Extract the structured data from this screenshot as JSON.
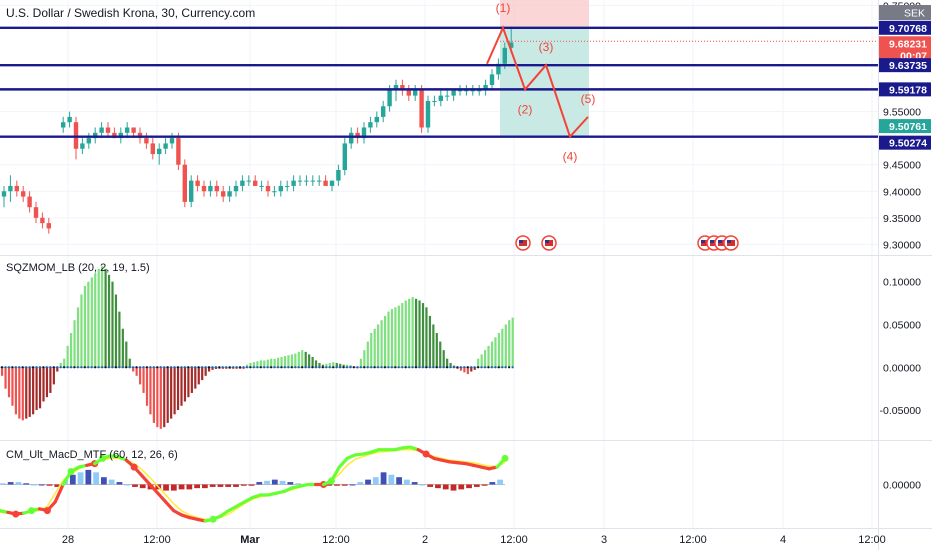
{
  "header": {
    "title": "U.S. Dollar / Swedish Krona, 30, Currency.com"
  },
  "indicators": {
    "sqz": {
      "label": "SQZMOM_LB (20, 2, 19, 1.5)"
    },
    "macd": {
      "label": "CM_Ult_MacD_MTF (60, 12, 26, 6)"
    }
  },
  "colors": {
    "level_line": "#1a1a8c",
    "wave": "#f44336",
    "zone_stop": "#f8c8c8",
    "zone_target": "#bfe6df",
    "candle_up": "#26a69a",
    "candle_down": "#ef5350",
    "mom_up_strong": "#7ee07e",
    "mom_up_weak": "#3f8f3f",
    "mom_down_strong": "#ef5350",
    "mom_down_weak": "#a52a2a",
    "macd_up": "#66ff33",
    "macd_down": "#f44336",
    "signal": "#ffeb3b"
  },
  "chart_data": [
    {
      "type": "candlestick",
      "title": "U.S. Dollar / Swedish Krona, 30, Currency.com",
      "x_tick_labels": [
        "28",
        "12:00",
        "Mar",
        "12:00",
        "2",
        "12:00",
        "3",
        "12:00",
        "4",
        "12:00"
      ],
      "y_tick_labels": [
        "9.30000",
        "9.35000",
        "9.40000",
        "9.45000",
        "9.55000",
        "9.75000"
      ],
      "ylim": [
        9.28,
        9.76
      ],
      "candles_ohlc": [
        [
          9.39,
          9.41,
          9.37,
          9.4
        ],
        [
          9.4,
          9.43,
          9.38,
          9.41
        ],
        [
          9.41,
          9.42,
          9.39,
          9.4
        ],
        [
          9.4,
          9.41,
          9.38,
          9.39
        ],
        [
          9.39,
          9.4,
          9.36,
          9.37
        ],
        [
          9.37,
          9.38,
          9.34,
          9.35
        ],
        [
          9.35,
          9.36,
          9.33,
          9.34
        ],
        [
          9.34,
          9.35,
          9.32,
          9.33
        ],
        [
          9.52,
          9.54,
          9.51,
          9.53
        ],
        [
          9.53,
          9.55,
          9.52,
          9.54
        ],
        [
          9.53,
          9.54,
          9.46,
          9.48
        ],
        [
          9.48,
          9.5,
          9.47,
          9.49
        ],
        [
          9.49,
          9.51,
          9.48,
          9.5
        ],
        [
          9.5,
          9.52,
          9.49,
          9.51
        ],
        [
          9.51,
          9.53,
          9.5,
          9.52
        ],
        [
          9.52,
          9.53,
          9.5,
          9.51
        ],
        [
          9.51,
          9.52,
          9.5,
          9.5
        ],
        [
          9.5,
          9.52,
          9.49,
          9.51
        ],
        [
          9.51,
          9.53,
          9.5,
          9.52
        ],
        [
          9.52,
          9.52,
          9.5,
          9.51
        ],
        [
          9.51,
          9.52,
          9.49,
          9.5
        ],
        [
          9.5,
          9.51,
          9.48,
          9.49
        ],
        [
          9.49,
          9.5,
          9.46,
          9.47
        ],
        [
          9.47,
          9.49,
          9.45,
          9.48
        ],
        [
          9.48,
          9.5,
          9.47,
          9.49
        ],
        [
          9.49,
          9.51,
          9.48,
          9.5
        ],
        [
          9.5,
          9.51,
          9.44,
          9.45
        ],
        [
          9.45,
          9.46,
          9.37,
          9.38
        ],
        [
          9.38,
          9.43,
          9.37,
          9.42
        ],
        [
          9.42,
          9.43,
          9.4,
          9.41
        ],
        [
          9.41,
          9.42,
          9.39,
          9.4
        ],
        [
          9.4,
          9.42,
          9.39,
          9.41
        ],
        [
          9.41,
          9.42,
          9.39,
          9.4
        ],
        [
          9.4,
          9.41,
          9.38,
          9.39
        ],
        [
          9.39,
          9.41,
          9.38,
          9.4
        ],
        [
          9.4,
          9.42,
          9.39,
          9.41
        ],
        [
          9.41,
          9.43,
          9.4,
          9.42
        ],
        [
          9.42,
          9.43,
          9.41,
          9.42
        ],
        [
          9.42,
          9.43,
          9.41,
          9.41
        ],
        [
          9.41,
          9.42,
          9.4,
          9.41
        ],
        [
          9.41,
          9.42,
          9.39,
          9.4
        ],
        [
          9.4,
          9.41,
          9.39,
          9.4
        ],
        [
          9.4,
          9.42,
          9.39,
          9.41
        ],
        [
          9.41,
          9.42,
          9.4,
          9.41
        ],
        [
          9.41,
          9.43,
          9.4,
          9.42
        ],
        [
          9.42,
          9.43,
          9.41,
          9.42
        ],
        [
          9.42,
          9.43,
          9.41,
          9.42
        ],
        [
          9.42,
          9.43,
          9.41,
          9.42
        ],
        [
          9.42,
          9.43,
          9.41,
          9.42
        ],
        [
          9.42,
          9.43,
          9.41,
          9.41
        ],
        [
          9.41,
          9.42,
          9.4,
          9.42
        ],
        [
          9.42,
          9.45,
          9.41,
          9.44
        ],
        [
          9.44,
          9.5,
          9.43,
          9.49
        ],
        [
          9.49,
          9.52,
          9.48,
          9.51
        ],
        [
          9.51,
          9.52,
          9.49,
          9.5
        ],
        [
          9.5,
          9.53,
          9.49,
          9.52
        ],
        [
          9.52,
          9.54,
          9.51,
          9.53
        ],
        [
          9.53,
          9.55,
          9.52,
          9.54
        ],
        [
          9.54,
          9.57,
          9.53,
          9.56
        ],
        [
          9.56,
          9.6,
          9.55,
          9.59
        ],
        [
          9.59,
          9.61,
          9.57,
          9.6
        ],
        [
          9.6,
          9.61,
          9.58,
          9.59
        ],
        [
          9.59,
          9.6,
          9.57,
          9.58
        ],
        [
          9.58,
          9.6,
          9.57,
          9.59
        ],
        [
          9.59,
          9.6,
          9.51,
          9.52
        ],
        [
          9.52,
          9.58,
          9.51,
          9.57
        ],
        [
          9.57,
          9.58,
          9.56,
          9.57
        ],
        [
          9.57,
          9.59,
          9.56,
          9.58
        ],
        [
          9.58,
          9.59,
          9.57,
          9.58
        ],
        [
          9.58,
          9.59,
          9.57,
          9.59
        ],
        [
          9.59,
          9.6,
          9.58,
          9.59
        ],
        [
          9.59,
          9.6,
          9.58,
          9.59
        ],
        [
          9.59,
          9.6,
          9.58,
          9.59
        ],
        [
          9.59,
          9.6,
          9.58,
          9.59
        ],
        [
          9.59,
          9.61,
          9.58,
          9.6
        ],
        [
          9.6,
          9.63,
          9.59,
          9.62
        ],
        [
          9.62,
          9.65,
          9.61,
          9.64
        ],
        [
          9.64,
          9.68,
          9.63,
          9.67
        ],
        [
          9.67,
          9.71,
          9.66,
          9.68
        ]
      ],
      "drawn_levels": [
        9.70768,
        9.63735,
        9.59178,
        9.50274
      ],
      "price_labels": [
        {
          "text": "9.70768",
          "bg": "#1a1a8c"
        },
        {
          "text": "9.68231",
          "bg": "#ef5350"
        },
        {
          "text": "00:07",
          "bg": "#ef5350"
        },
        {
          "text": "9.63735",
          "bg": "#1a1a8c"
        },
        {
          "text": "9.59178",
          "bg": "#1a1a8c"
        },
        {
          "text": "9.50761",
          "bg": "#26a69a"
        },
        {
          "text": "9.50274",
          "bg": "#1a1a8c"
        }
      ],
      "currency_badge": "SEK",
      "position_tool": {
        "entry": 9.70768,
        "stop": 9.76,
        "target": 9.50274
      },
      "wave_labels": [
        "(1)",
        "(2)",
        "(3)",
        "(4)",
        "(5)"
      ],
      "wave_points": [
        9.70768,
        9.59178,
        9.63735,
        9.50274,
        9.54
      ],
      "event_markers": [
        "US",
        "US",
        "US",
        "US",
        "US",
        "US"
      ]
    },
    {
      "type": "bar",
      "title": "SQZMOM_LB (20, 2, 19, 1.5)",
      "y_tick_labels": [
        "0.10000",
        "0.05000",
        "0.00000",
        "-0.05000"
      ],
      "ylim": [
        -0.085,
        0.13
      ],
      "values": [
        -0.01,
        -0.025,
        -0.035,
        -0.045,
        -0.055,
        -0.06,
        -0.062,
        -0.06,
        -0.058,
        -0.055,
        -0.05,
        -0.048,
        -0.04,
        -0.035,
        -0.03,
        -0.02,
        -0.005,
        0.005,
        0.01,
        0.025,
        0.04,
        0.055,
        0.07,
        0.085,
        0.095,
        0.1,
        0.105,
        0.11,
        0.115,
        0.118,
        0.115,
        0.108,
        0.1,
        0.085,
        0.065,
        0.045,
        0.03,
        0.01,
        -0.005,
        -0.01,
        -0.02,
        -0.03,
        -0.045,
        -0.055,
        -0.065,
        -0.07,
        -0.072,
        -0.07,
        -0.065,
        -0.06,
        -0.055,
        -0.05,
        -0.045,
        -0.04,
        -0.035,
        -0.03,
        -0.025,
        -0.02,
        -0.015,
        -0.01,
        -0.005,
        -0.003,
        -0.002,
        -0.002,
        -0.002,
        -0.002,
        -0.002,
        -0.002,
        -0.002,
        -0.002,
        -0.002,
        0.003,
        0.005,
        0.006,
        0.007,
        0.008,
        0.008,
        0.009,
        0.01,
        0.01,
        0.011,
        0.012,
        0.013,
        0.014,
        0.015,
        0.016,
        0.018,
        0.02,
        0.018,
        0.015,
        0.012,
        0.008,
        0.005,
        0.003,
        0.004,
        0.005,
        0.006,
        0.005,
        0.004,
        0.003,
        0.003,
        0.002,
        0.001,
        0.0,
        0.01,
        0.02,
        0.03,
        0.04,
        0.045,
        0.05,
        0.055,
        0.06,
        0.065,
        0.068,
        0.07,
        0.072,
        0.075,
        0.078,
        0.08,
        0.082,
        0.08,
        0.078,
        0.075,
        0.07,
        0.06,
        0.05,
        0.04,
        0.03,
        0.02,
        0.01,
        0.005,
        0.002,
        -0.002,
        -0.004,
        -0.006,
        -0.008,
        -0.005,
        -0.003,
        0.01,
        0.015,
        0.02,
        0.025,
        0.03,
        0.035,
        0.04,
        0.045,
        0.05,
        0.055,
        0.058
      ]
    },
    {
      "type": "line",
      "title": "CM_Ult_MacD_MTF (60, 12, 26, 6)",
      "y_tick_labels": [
        "0.00000"
      ],
      "ylim": [
        -0.05,
        0.05
      ],
      "series": [
        {
          "values": [
            -0.03,
            -0.032,
            -0.034,
            -0.033,
            -0.03,
            -0.028,
            -0.03,
            -0.02,
            0.0,
            0.015,
            0.02,
            0.022,
            0.024,
            0.03,
            0.033,
            0.032,
            0.028,
            0.02,
            0.01,
            0.0,
            -0.01,
            -0.02,
            -0.03,
            -0.035,
            -0.038,
            -0.04,
            -0.042,
            -0.04,
            -0.036,
            -0.03,
            -0.025,
            -0.02,
            -0.015,
            -0.012,
            -0.012,
            -0.01,
            -0.008,
            -0.004,
            -0.002,
            0.0,
            0.0,
            0.0,
            0.004,
            0.02,
            0.03,
            0.034,
            0.035,
            0.037,
            0.04,
            0.04,
            0.04,
            0.042,
            0.043,
            0.04,
            0.035,
            0.03,
            0.028,
            0.026,
            0.025,
            0.024,
            0.022,
            0.02,
            0.018,
            0.02,
            0.03
          ]
        },
        {
          "values": [
            -0.032,
            -0.033,
            -0.033,
            -0.032,
            -0.031,
            -0.03,
            -0.025,
            -0.01,
            0.005,
            0.012,
            0.018,
            0.022,
            0.026,
            0.028,
            0.03,
            0.03,
            0.028,
            0.024,
            0.017,
            0.008,
            -0.002,
            -0.012,
            -0.022,
            -0.03,
            -0.035,
            -0.038,
            -0.04,
            -0.04,
            -0.038,
            -0.034,
            -0.028,
            -0.022,
            -0.017,
            -0.014,
            -0.013,
            -0.011,
            -0.009,
            -0.006,
            -0.003,
            -0.001,
            0.0,
            0.001,
            0.004,
            0.012,
            0.022,
            0.029,
            0.032,
            0.035,
            0.037,
            0.038,
            0.039,
            0.04,
            0.04,
            0.039,
            0.036,
            0.032,
            0.03,
            0.028,
            0.027,
            0.026,
            0.025,
            0.023,
            0.021,
            0.021,
            0.025
          ]
        }
      ],
      "histogram": [
        0.001,
        0.002,
        0.002,
        0.001,
        0.0,
        0.0,
        -0.001,
        -0.002,
        0.004,
        0.008,
        0.01,
        0.012,
        0.01,
        0.006,
        0.004,
        0.002,
        0.0,
        -0.002,
        -0.003,
        -0.004,
        -0.004,
        -0.005,
        -0.005,
        -0.004,
        -0.004,
        -0.003,
        -0.003,
        -0.002,
        -0.002,
        -0.002,
        -0.002,
        -0.001,
        -0.001,
        0.002,
        0.003,
        0.004,
        0.003,
        0.002,
        0.001,
        0.0,
        0.0,
        0.0,
        -0.001,
        -0.001,
        -0.001,
        0.0,
        0.002,
        0.004,
        0.006,
        0.01,
        0.008,
        0.006,
        0.004,
        0.002,
        0.0,
        -0.002,
        -0.003,
        -0.004,
        -0.005,
        -0.004,
        -0.003,
        -0.002,
        -0.001,
        0.002,
        0.004
      ]
    }
  ]
}
